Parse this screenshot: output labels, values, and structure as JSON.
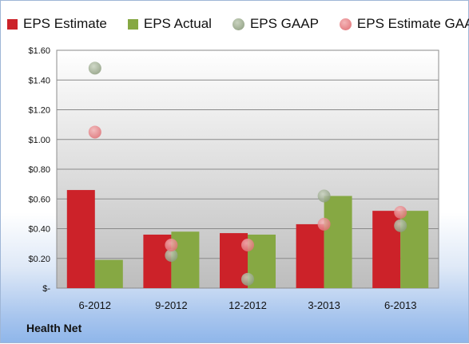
{
  "chart_data": {
    "type": "bar",
    "categories": [
      "6-2012",
      "9-2012",
      "12-2012",
      "3-2013",
      "6-2013"
    ],
    "series": [
      {
        "name": "EPS Estimate",
        "kind": "bar",
        "color": "#cc2229",
        "values": [
          0.66,
          0.36,
          0.37,
          0.43,
          0.52
        ]
      },
      {
        "name": "EPS Actual",
        "kind": "bar",
        "color": "#86a843",
        "values": [
          0.19,
          0.38,
          0.36,
          0.62,
          0.52
        ]
      },
      {
        "name": "EPS GAAP",
        "kind": "scatter",
        "color": "#9aab8c",
        "values": [
          1.48,
          0.22,
          0.06,
          0.62,
          0.42
        ]
      },
      {
        "name": "EPS Estimate GAAP",
        "kind": "scatter",
        "color": "#e57b7f",
        "values": [
          1.05,
          0.29,
          0.29,
          0.43,
          0.51
        ]
      }
    ],
    "ylim": [
      0,
      1.6
    ],
    "yticks": [
      "$-",
      "$0.20",
      "$0.40",
      "$0.60",
      "$0.80",
      "$1.00",
      "$1.20",
      "$1.40",
      "$1.60"
    ],
    "grid": true,
    "legend": "top"
  },
  "footer": {
    "company": "Health Net"
  }
}
